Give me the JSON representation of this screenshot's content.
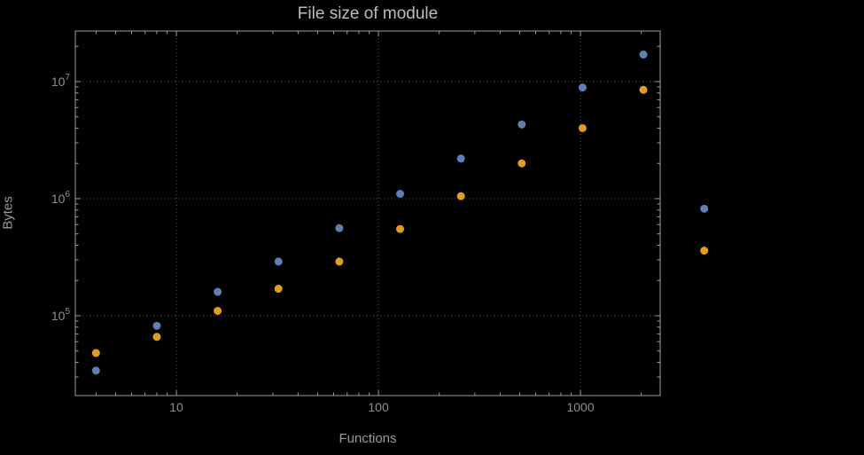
{
  "colors": {
    "background": "#000000",
    "frame": "#9e9e9e",
    "gridline": "#5c5c5c",
    "title_text": "#bdbdbd",
    "axis_label_text": "#9a9a9a",
    "tick_label_text": "#8f8f8f",
    "series_blue": "#5e81b5",
    "series_orange": "#e19c24"
  },
  "chart_data": {
    "type": "scatter",
    "title": "File size of module",
    "xlabel": "Functions",
    "ylabel": "Bytes",
    "x_scale": "log",
    "y_scale": "log",
    "grid": true,
    "legend": "none",
    "xlim": [
      3.16,
      2480
    ],
    "ylim": [
      20800,
      27000000
    ],
    "x_ticks": [
      10,
      100,
      1000
    ],
    "x_tick_labels": [
      "10",
      "100",
      "1000"
    ],
    "y_ticks": [
      100000,
      1000000,
      10000000
    ],
    "y_tick_labels": [
      "10^5",
      "10^6",
      "10^7"
    ],
    "x": [
      4,
      8,
      16,
      32,
      64,
      128,
      256,
      512,
      1024,
      2048,
      4096
    ],
    "series": [
      {
        "name": "series-1-blue",
        "color": "#5e81b5",
        "values": [
          34000,
          82000,
          160000,
          290000,
          560000,
          1100000,
          2200000,
          4300000,
          8900000,
          17000000,
          820000
        ]
      },
      {
        "name": "series-2-orange",
        "color": "#e19c24",
        "values": [
          48000,
          66000,
          110000,
          170000,
          290000,
          550000,
          1050000,
          2000000,
          4000000,
          8500000,
          360000
        ]
      }
    ]
  }
}
